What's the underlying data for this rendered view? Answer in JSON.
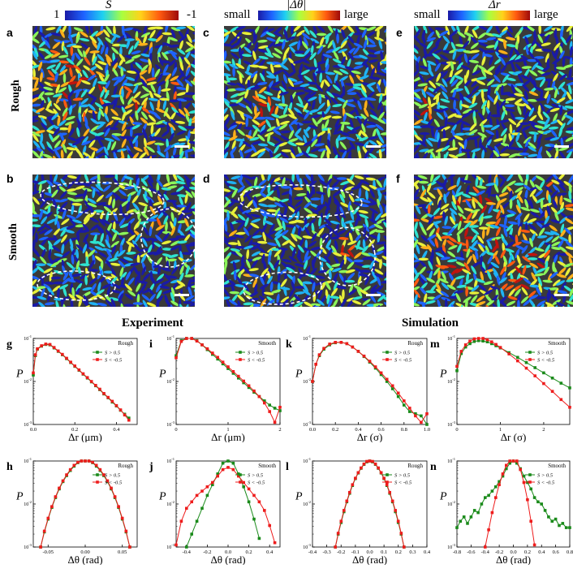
{
  "colorbars": [
    {
      "id": "S",
      "title": "S",
      "left": "1",
      "right": "-1"
    },
    {
      "id": "dtheta",
      "title": "|Δθ|",
      "left": "small",
      "right": "large"
    },
    {
      "id": "dr",
      "title": "Δr",
      "left": "small",
      "right": "large"
    }
  ],
  "colors": {
    "green": "#1a8a1a",
    "red": "#ee1c1c",
    "scalebar": "#ffffff",
    "ellipse": "#ffffff"
  },
  "row_labels": {
    "rough": "Rough",
    "smooth": "Smooth"
  },
  "image_panels": [
    {
      "letter": "a",
      "variant": "S-rough"
    },
    {
      "letter": "c",
      "variant": "dtheta-rough"
    },
    {
      "letter": "e",
      "variant": "dr-rough"
    },
    {
      "letter": "b",
      "variant": "S-smooth"
    },
    {
      "letter": "d",
      "variant": "dtheta-smooth"
    },
    {
      "letter": "f",
      "variant": "dr-smooth"
    }
  ],
  "section_titles": {
    "experiment": "Experiment",
    "simulation": "Simulation"
  },
  "chart_data": [
    {
      "id": "g",
      "type": "line",
      "log_y": true,
      "title": "Rough",
      "xlabel": "Δr (μm)",
      "ylabel": "P",
      "xlim": [
        0,
        0.5
      ],
      "xticks": [
        0.0,
        0.2,
        0.4
      ],
      "ylim_exp": [
        -3,
        -1
      ],
      "legend": [
        "S > 0.5",
        "S < -0.5"
      ],
      "series": [
        {
          "name": "S > 0.5",
          "x": [
            0.0,
            0.01,
            0.02,
            0.04,
            0.06,
            0.08,
            0.1,
            0.12,
            0.14,
            0.16,
            0.18,
            0.2,
            0.22,
            0.24,
            0.26,
            0.28,
            0.3,
            0.32,
            0.34,
            0.36,
            0.38,
            0.4,
            0.42,
            0.44,
            0.46
          ],
          "log10p": [
            -1.85,
            -1.4,
            -1.25,
            -1.18,
            -1.14,
            -1.15,
            -1.22,
            -1.3,
            -1.38,
            -1.47,
            -1.56,
            -1.65,
            -1.74,
            -1.83,
            -1.92,
            -2.01,
            -2.1,
            -2.19,
            -2.29,
            -2.38,
            -2.48,
            -2.57,
            -2.67,
            -2.76,
            -2.85
          ]
        },
        {
          "name": "S < -0.5",
          "x": [
            0.0,
            0.01,
            0.02,
            0.04,
            0.06,
            0.08,
            0.1,
            0.12,
            0.14,
            0.16,
            0.18,
            0.2,
            0.22,
            0.24,
            0.26,
            0.28,
            0.3,
            0.32,
            0.34,
            0.36,
            0.38,
            0.4,
            0.42,
            0.44,
            0.46
          ],
          "log10p": [
            -1.8,
            -1.38,
            -1.24,
            -1.17,
            -1.13,
            -1.14,
            -1.21,
            -1.29,
            -1.37,
            -1.46,
            -1.55,
            -1.64,
            -1.73,
            -1.82,
            -1.91,
            -2.0,
            -2.09,
            -2.18,
            -2.28,
            -2.37,
            -2.46,
            -2.56,
            -2.66,
            -2.78,
            -2.9
          ]
        }
      ]
    },
    {
      "id": "i",
      "type": "line",
      "log_y": true,
      "title": "Smooth",
      "xlabel": "Δr (μm)",
      "ylabel": "P",
      "xlim": [
        0,
        2
      ],
      "xticks": [
        0,
        1,
        2
      ],
      "ylim_exp": [
        -3,
        -1
      ],
      "legend": [
        "S > 0.5",
        "S < -0.5"
      ],
      "series": [
        {
          "name": "S > 0.5",
          "x": [
            0.0,
            0.1,
            0.2,
            0.3,
            0.4,
            0.5,
            0.6,
            0.7,
            0.8,
            0.9,
            1.0,
            1.1,
            1.2,
            1.3,
            1.4,
            1.5,
            1.6,
            1.7,
            1.8,
            1.9,
            2.0
          ],
          "log10p": [
            -1.4,
            -1.05,
            -0.95,
            -0.96,
            -1.05,
            -1.15,
            -1.26,
            -1.37,
            -1.48,
            -1.59,
            -1.7,
            -1.81,
            -1.92,
            -2.03,
            -2.14,
            -2.25,
            -2.35,
            -2.45,
            -2.55,
            -2.62,
            -2.68
          ]
        },
        {
          "name": "S < -0.5",
          "x": [
            0.0,
            0.1,
            0.2,
            0.3,
            0.4,
            0.5,
            0.6,
            0.7,
            0.8,
            0.9,
            1.0,
            1.1,
            1.2,
            1.3,
            1.4,
            1.5,
            1.6,
            1.7,
            1.8,
            1.9,
            2.0
          ],
          "log10p": [
            -1.45,
            -1.07,
            -0.97,
            -0.98,
            -1.06,
            -1.15,
            -1.24,
            -1.34,
            -1.44,
            -1.55,
            -1.66,
            -1.77,
            -1.88,
            -1.99,
            -2.1,
            -2.22,
            -2.35,
            -2.5,
            -2.7,
            -2.95,
            -2.6
          ]
        }
      ]
    },
    {
      "id": "k",
      "type": "line",
      "log_y": true,
      "title": "Rough",
      "xlabel": "Δr (σ)",
      "ylabel": "P",
      "xlim": [
        0,
        1
      ],
      "xticks": [
        0.0,
        0.2,
        0.4,
        0.6,
        0.8,
        1.0
      ],
      "ylim_exp": [
        -3,
        -1
      ],
      "legend": [
        "S > 0.5",
        "S < -0.5"
      ],
      "series": [
        {
          "name": "S > 0.5",
          "x": [
            0.0,
            0.03,
            0.06,
            0.1,
            0.15,
            0.2,
            0.25,
            0.3,
            0.35,
            0.4,
            0.45,
            0.5,
            0.55,
            0.6,
            0.65,
            0.7,
            0.75,
            0.8,
            0.85,
            0.9,
            0.95,
            1.0
          ],
          "log10p": [
            -2.0,
            -1.6,
            -1.4,
            -1.25,
            -1.15,
            -1.1,
            -1.09,
            -1.12,
            -1.2,
            -1.3,
            -1.42,
            -1.55,
            -1.69,
            -1.84,
            -2.0,
            -2.17,
            -2.35,
            -2.55,
            -2.7,
            -2.75,
            -2.8,
            -3.0
          ]
        },
        {
          "name": "S < -0.5",
          "x": [
            0.0,
            0.03,
            0.06,
            0.1,
            0.15,
            0.2,
            0.25,
            0.3,
            0.35,
            0.4,
            0.45,
            0.5,
            0.55,
            0.6,
            0.65,
            0.7,
            0.75,
            0.8,
            0.85,
            0.9,
            0.95,
            1.0
          ],
          "log10p": [
            -2.0,
            -1.6,
            -1.38,
            -1.23,
            -1.13,
            -1.09,
            -1.09,
            -1.12,
            -1.2,
            -1.3,
            -1.41,
            -1.53,
            -1.66,
            -1.8,
            -1.95,
            -2.1,
            -2.27,
            -2.45,
            -2.62,
            -2.8,
            -2.95,
            -2.75
          ]
        }
      ]
    },
    {
      "id": "m",
      "type": "line",
      "log_y": true,
      "title": "Smooth",
      "xlabel": "Δr (σ)",
      "ylabel": "P",
      "xlim": [
        0,
        2.6
      ],
      "xticks": [
        0,
        1,
        2
      ],
      "ylim_exp": [
        -3,
        -1
      ],
      "legend": [
        "S > 0.5",
        "S < -0.5"
      ],
      "series": [
        {
          "name": "S > 0.5",
          "x": [
            0.0,
            0.1,
            0.2,
            0.3,
            0.4,
            0.5,
            0.6,
            0.7,
            0.8,
            0.9,
            1.0,
            1.2,
            1.4,
            1.6,
            1.8,
            2.0,
            2.2,
            2.4,
            2.6
          ],
          "log10p": [
            -1.75,
            -1.35,
            -1.2,
            -1.12,
            -1.07,
            -1.05,
            -1.06,
            -1.08,
            -1.12,
            -1.17,
            -1.22,
            -1.33,
            -1.44,
            -1.56,
            -1.68,
            -1.8,
            -1.92,
            -2.04,
            -2.15
          ]
        },
        {
          "name": "S < -0.5",
          "x": [
            0.0,
            0.1,
            0.2,
            0.3,
            0.4,
            0.5,
            0.6,
            0.7,
            0.8,
            0.9,
            1.0,
            1.2,
            1.4,
            1.6,
            1.8,
            2.0,
            2.2,
            2.4,
            2.6
          ],
          "log10p": [
            -1.65,
            -1.3,
            -1.15,
            -1.06,
            -1.01,
            -0.99,
            -1.0,
            -1.03,
            -1.08,
            -1.14,
            -1.21,
            -1.36,
            -1.52,
            -1.69,
            -1.87,
            -2.05,
            -2.23,
            -2.42,
            -2.6
          ]
        }
      ]
    },
    {
      "id": "h",
      "type": "line",
      "log_y": true,
      "title": "Rough",
      "xlabel": "Δθ (rad)",
      "ylabel": "P",
      "xlim": [
        -0.07,
        0.07
      ],
      "xticks": [
        -0.05,
        0.0,
        0.05
      ],
      "xtick_labels": [
        "-0.05",
        "0.00",
        "0.05"
      ],
      "ylim_exp": [
        -3,
        -1
      ],
      "legend": [
        "S > 0.5",
        "S < -0.5"
      ],
      "series": [
        {
          "name": "S > 0.5",
          "x": [
            -0.06,
            -0.055,
            -0.05,
            -0.045,
            -0.04,
            -0.035,
            -0.03,
            -0.025,
            -0.02,
            -0.015,
            -0.01,
            -0.005,
            0.0,
            0.005,
            0.01,
            0.015,
            0.02,
            0.025,
            0.03,
            0.035,
            0.04,
            0.045,
            0.05,
            0.055,
            0.06
          ],
          "log10p": [
            -3.0,
            -2.65,
            -2.35,
            -2.08,
            -1.85,
            -1.65,
            -1.48,
            -1.34,
            -1.22,
            -1.12,
            -1.04,
            -0.98,
            -0.96,
            -0.98,
            -1.04,
            -1.12,
            -1.22,
            -1.34,
            -1.48,
            -1.65,
            -1.85,
            -2.08,
            -2.35,
            -2.65,
            -3.0
          ]
        },
        {
          "name": "S < -0.5",
          "x": [
            -0.06,
            -0.055,
            -0.05,
            -0.045,
            -0.04,
            -0.035,
            -0.03,
            -0.025,
            -0.02,
            -0.015,
            -0.01,
            -0.005,
            0.0,
            0.005,
            0.01,
            0.015,
            0.02,
            0.025,
            0.03,
            0.035,
            0.04,
            0.045,
            0.05,
            0.055,
            0.06
          ],
          "log10p": [
            -3.0,
            -2.63,
            -2.33,
            -2.06,
            -1.83,
            -1.63,
            -1.46,
            -1.32,
            -1.2,
            -1.1,
            -1.03,
            -0.97,
            -0.95,
            -0.97,
            -1.03,
            -1.1,
            -1.2,
            -1.32,
            -1.46,
            -1.63,
            -1.83,
            -2.06,
            -2.33,
            -2.63,
            -3.0
          ]
        }
      ]
    },
    {
      "id": "j",
      "type": "line",
      "log_y": true,
      "title": "Smooth",
      "xlabel": "Δθ (rad)",
      "ylabel": "P",
      "xlim": [
        -0.5,
        0.5
      ],
      "xticks": [
        -0.4,
        -0.2,
        0.0,
        0.2,
        0.4
      ],
      "ylim_exp": [
        -3,
        -1
      ],
      "legend": [
        "S > 0.5",
        "S < -0.5"
      ],
      "series": [
        {
          "name": "S > 0.5",
          "x": [
            -0.4,
            -0.35,
            -0.3,
            -0.25,
            -0.2,
            -0.15,
            -0.1,
            -0.05,
            0.0,
            0.05,
            0.1,
            0.15,
            0.2,
            0.25,
            0.3
          ],
          "log10p": [
            -3.0,
            -2.7,
            -2.4,
            -2.1,
            -1.8,
            -1.55,
            -1.3,
            -1.05,
            -0.9,
            -1.05,
            -1.3,
            -1.6,
            -1.95,
            -2.35,
            -2.8
          ]
        },
        {
          "name": "S < -0.5",
          "x": [
            -0.5,
            -0.45,
            -0.4,
            -0.35,
            -0.3,
            -0.25,
            -0.2,
            -0.15,
            -0.1,
            -0.05,
            0.0,
            0.05,
            0.1,
            0.15,
            0.2,
            0.25,
            0.3,
            0.35,
            0.4,
            0.45
          ],
          "log10p": [
            -2.95,
            -2.4,
            -2.1,
            -1.95,
            -1.8,
            -1.7,
            -1.6,
            -1.5,
            -1.35,
            -1.2,
            -1.15,
            -1.2,
            -1.35,
            -1.5,
            -1.65,
            -1.8,
            -1.95,
            -2.15,
            -2.5,
            -2.9
          ]
        }
      ]
    },
    {
      "id": "l",
      "type": "line",
      "log_y": true,
      "title": "Rough",
      "xlabel": "Δθ (rad)",
      "ylabel": "P",
      "xlim": [
        -0.4,
        0.4
      ],
      "xticks": [
        -0.4,
        -0.3,
        -0.2,
        -0.1,
        0.0,
        0.1,
        0.2,
        0.3,
        0.4
      ],
      "ylim_exp": [
        -3,
        -1
      ],
      "legend": [
        "S > 0.5",
        "S < -0.5"
      ],
      "series": [
        {
          "name": "S > 0.5",
          "x": [
            -0.24,
            -0.22,
            -0.2,
            -0.18,
            -0.16,
            -0.14,
            -0.12,
            -0.1,
            -0.08,
            -0.06,
            -0.04,
            -0.02,
            0.0,
            0.02,
            0.04,
            0.06,
            0.08,
            0.1,
            0.12,
            0.14,
            0.16,
            0.18,
            0.2,
            0.22,
            0.24
          ],
          "log10p": [
            -3.0,
            -2.7,
            -2.43,
            -2.18,
            -1.95,
            -1.75,
            -1.57,
            -1.41,
            -1.28,
            -1.17,
            -1.08,
            -1.02,
            -0.99,
            -1.02,
            -1.08,
            -1.17,
            -1.28,
            -1.41,
            -1.57,
            -1.75,
            -1.95,
            -2.18,
            -2.43,
            -2.7,
            -3.0
          ]
        },
        {
          "name": "S < -0.5",
          "x": [
            -0.24,
            -0.22,
            -0.2,
            -0.18,
            -0.16,
            -0.14,
            -0.12,
            -0.1,
            -0.08,
            -0.06,
            -0.04,
            -0.02,
            0.0,
            0.02,
            0.04,
            0.06,
            0.08,
            0.1,
            0.12,
            0.14,
            0.16,
            0.18,
            0.2,
            0.22,
            0.24
          ],
          "log10p": [
            -3.0,
            -2.68,
            -2.4,
            -2.15,
            -1.93,
            -1.73,
            -1.55,
            -1.4,
            -1.27,
            -1.16,
            -1.07,
            -1.01,
            -0.98,
            -1.01,
            -1.07,
            -1.16,
            -1.27,
            -1.4,
            -1.55,
            -1.73,
            -1.93,
            -2.15,
            -2.4,
            -2.68,
            -3.0
          ]
        }
      ]
    },
    {
      "id": "n",
      "type": "line",
      "log_y": true,
      "title": "Smooth",
      "xlabel": "Δθ (rad)",
      "ylabel": "P",
      "xlim": [
        -0.8,
        0.8
      ],
      "xticks": [
        -0.8,
        -0.6,
        -0.4,
        -0.2,
        0.0,
        0.2,
        0.4,
        0.6,
        0.8
      ],
      "ylim_exp": [
        -3,
        -1
      ],
      "legend": [
        "S > 0.5",
        "S < -0.5"
      ],
      "series": [
        {
          "name": "S > 0.5",
          "x": [
            -0.8,
            -0.75,
            -0.7,
            -0.65,
            -0.6,
            -0.55,
            -0.5,
            -0.45,
            -0.4,
            -0.35,
            -0.3,
            -0.25,
            -0.2,
            -0.15,
            -0.1,
            -0.05,
            0.0,
            0.05,
            0.1,
            0.15,
            0.2,
            0.25,
            0.3,
            0.35,
            0.4,
            0.45,
            0.5,
            0.55,
            0.6,
            0.65,
            0.7,
            0.75,
            0.8
          ],
          "log10p": [
            -2.55,
            -2.4,
            -2.3,
            -2.45,
            -2.3,
            -2.15,
            -2.2,
            -2.0,
            -1.85,
            -1.8,
            -1.7,
            -1.6,
            -1.48,
            -1.35,
            -1.18,
            -1.05,
            -0.98,
            -1.05,
            -1.18,
            -1.35,
            -1.5,
            -1.65,
            -1.85,
            -1.95,
            -2.0,
            -2.15,
            -2.3,
            -2.4,
            -2.35,
            -2.5,
            -2.45,
            -2.55,
            -2.55
          ]
        },
        {
          "name": "S < -0.5",
          "x": [
            -0.4,
            -0.35,
            -0.3,
            -0.25,
            -0.2,
            -0.15,
            -0.1,
            -0.05,
            0.0,
            0.05,
            0.1,
            0.15,
            0.2,
            0.25,
            0.3
          ],
          "log10p": [
            -3.0,
            -2.6,
            -2.2,
            -1.85,
            -1.55,
            -1.3,
            -1.1,
            -0.93,
            -0.85,
            -0.95,
            -1.2,
            -1.5,
            -1.9,
            -2.4,
            -2.95
          ]
        }
      ]
    }
  ]
}
